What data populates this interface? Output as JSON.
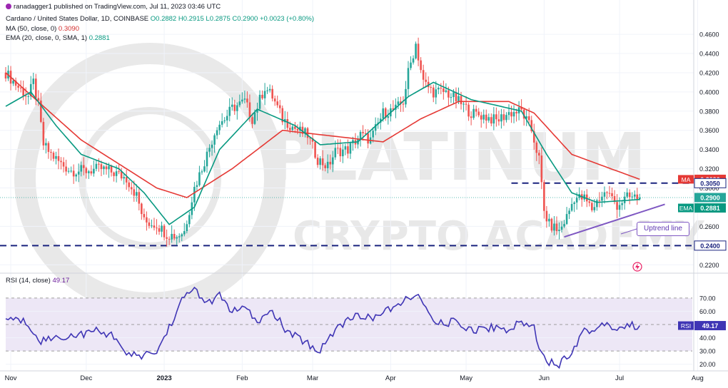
{
  "header": {
    "publisher": "ranadagger1 published on TradingView.com, Jul 11, 2023 03:46 UTC",
    "symbol": "Cardano / United States Dollar, 1D, COINBASE",
    "ohlc": "O0.2882 H0.2915 L0.2875 C0.2900 +0.0023 (+0.80%)",
    "ma_label": "MA (50, close, 0)",
    "ma_value": "0.3090",
    "ema_label": "EMA (20, close, 0, SMA, 1)",
    "ema_value": "0.2881",
    "rsi_label": "RSI (14, close)",
    "rsi_value": "49.17"
  },
  "watermark": {
    "line1": "PLATINUM",
    "line2": "CRYPTO ACADEMY"
  },
  "annotation": {
    "uptrend_label": "Uptrend line"
  },
  "colors": {
    "up": "#26a69a",
    "down": "#ef5350",
    "ma": "#e53935",
    "ema": "#089981",
    "rsi": "#3f35b5",
    "rsi_band": "#ede7f6",
    "level_line": "#1a237e",
    "trendline": "#7e57c2",
    "axis_text": "#131722"
  },
  "chart_data": [
    {
      "type": "candlestick",
      "title": "Cardano / United States Dollar, 1D, COINBASE",
      "x_ticks": [
        "Nov",
        "Dec",
        "2023",
        "Feb",
        "Mar",
        "Apr",
        "May",
        "Jun",
        "Jul",
        "Aug"
      ],
      "y_ticks": [
        "0.4600",
        "0.4400",
        "0.4200",
        "0.4000",
        "0.3800",
        "0.3600",
        "0.3400",
        "0.3200",
        "0.3000",
        "0.2600",
        "0.2400",
        "0.2200"
      ],
      "ylim": [
        0.215,
        0.466
      ],
      "last_price": "0.2900",
      "ma_tag": {
        "label": "MA",
        "value": "0.3090"
      },
      "ema_tag": {
        "label": "EMA",
        "value": "0.2881"
      },
      "levels": [
        {
          "value": 0.305,
          "label": "0.3050"
        },
        {
          "value": 0.24,
          "label": "0.2400"
        }
      ],
      "uptrend_line": {
        "from": {
          "date": "Jun 11",
          "price": 0.249
        },
        "to": {
          "date": "Jul 25",
          "price": 0.283
        }
      },
      "close_keypoints": [
        {
          "d": 0,
          "v": 0.42
        },
        {
          "d": 5,
          "v": 0.405
        },
        {
          "d": 9,
          "v": 0.395
        },
        {
          "d": 11,
          "v": 0.41
        },
        {
          "d": 13,
          "v": 0.385
        },
        {
          "d": 15,
          "v": 0.345
        },
        {
          "d": 18,
          "v": 0.335
        },
        {
          "d": 22,
          "v": 0.325
        },
        {
          "d": 26,
          "v": 0.318
        },
        {
          "d": 32,
          "v": 0.318
        },
        {
          "d": 38,
          "v": 0.32
        },
        {
          "d": 44,
          "v": 0.315
        },
        {
          "d": 48,
          "v": 0.31
        },
        {
          "d": 52,
          "v": 0.292
        },
        {
          "d": 55,
          "v": 0.265
        },
        {
          "d": 60,
          "v": 0.262
        },
        {
          "d": 64,
          "v": 0.252
        },
        {
          "d": 68,
          "v": 0.25
        },
        {
          "d": 71,
          "v": 0.255
        },
        {
          "d": 75,
          "v": 0.3
        },
        {
          "d": 80,
          "v": 0.335
        },
        {
          "d": 84,
          "v": 0.365
        },
        {
          "d": 87,
          "v": 0.372
        },
        {
          "d": 90,
          "v": 0.383
        },
        {
          "d": 95,
          "v": 0.39
        },
        {
          "d": 98,
          "v": 0.372
        },
        {
          "d": 103,
          "v": 0.405
        },
        {
          "d": 106,
          "v": 0.395
        },
        {
          "d": 110,
          "v": 0.372
        },
        {
          "d": 116,
          "v": 0.36
        },
        {
          "d": 120,
          "v": 0.355
        },
        {
          "d": 124,
          "v": 0.33
        },
        {
          "d": 128,
          "v": 0.322
        },
        {
          "d": 131,
          "v": 0.338
        },
        {
          "d": 136,
          "v": 0.34
        },
        {
          "d": 141,
          "v": 0.355
        },
        {
          "d": 145,
          "v": 0.35
        },
        {
          "d": 150,
          "v": 0.378
        },
        {
          "d": 155,
          "v": 0.382
        },
        {
          "d": 158,
          "v": 0.39
        },
        {
          "d": 160,
          "v": 0.42
        },
        {
          "d": 163,
          "v": 0.45
        },
        {
          "d": 166,
          "v": 0.41
        },
        {
          "d": 170,
          "v": 0.4
        },
        {
          "d": 175,
          "v": 0.4
        },
        {
          "d": 180,
          "v": 0.39
        },
        {
          "d": 185,
          "v": 0.378
        },
        {
          "d": 190,
          "v": 0.375
        },
        {
          "d": 195,
          "v": 0.37
        },
        {
          "d": 200,
          "v": 0.378
        },
        {
          "d": 205,
          "v": 0.38
        },
        {
          "d": 209,
          "v": 0.36
        },
        {
          "d": 212,
          "v": 0.33
        },
        {
          "d": 214,
          "v": 0.275
        },
        {
          "d": 216,
          "v": 0.262
        },
        {
          "d": 220,
          "v": 0.255
        },
        {
          "d": 223,
          "v": 0.27
        },
        {
          "d": 226,
          "v": 0.29
        },
        {
          "d": 230,
          "v": 0.289
        },
        {
          "d": 233,
          "v": 0.278
        },
        {
          "d": 236,
          "v": 0.29
        },
        {
          "d": 239,
          "v": 0.296
        },
        {
          "d": 243,
          "v": 0.282
        },
        {
          "d": 247,
          "v": 0.29
        },
        {
          "d": 252,
          "v": 0.29
        }
      ],
      "ma_keypoints": [
        {
          "d": 0,
          "v": 0.42
        },
        {
          "d": 30,
          "v": 0.35
        },
        {
          "d": 60,
          "v": 0.3
        },
        {
          "d": 72,
          "v": 0.29
        },
        {
          "d": 90,
          "v": 0.32
        },
        {
          "d": 110,
          "v": 0.36
        },
        {
          "d": 150,
          "v": 0.348
        },
        {
          "d": 165,
          "v": 0.372
        },
        {
          "d": 180,
          "v": 0.39
        },
        {
          "d": 200,
          "v": 0.39
        },
        {
          "d": 210,
          "v": 0.378
        },
        {
          "d": 225,
          "v": 0.335
        },
        {
          "d": 252,
          "v": 0.309
        }
      ],
      "ema_keypoints": [
        {
          "d": 0,
          "v": 0.385
        },
        {
          "d": 10,
          "v": 0.4
        },
        {
          "d": 20,
          "v": 0.365
        },
        {
          "d": 30,
          "v": 0.335
        },
        {
          "d": 45,
          "v": 0.32
        },
        {
          "d": 55,
          "v": 0.295
        },
        {
          "d": 65,
          "v": 0.262
        },
        {
          "d": 75,
          "v": 0.28
        },
        {
          "d": 85,
          "v": 0.34
        },
        {
          "d": 100,
          "v": 0.382
        },
        {
          "d": 115,
          "v": 0.365
        },
        {
          "d": 125,
          "v": 0.345
        },
        {
          "d": 140,
          "v": 0.348
        },
        {
          "d": 160,
          "v": 0.395
        },
        {
          "d": 170,
          "v": 0.41
        },
        {
          "d": 185,
          "v": 0.392
        },
        {
          "d": 205,
          "v": 0.38
        },
        {
          "d": 215,
          "v": 0.335
        },
        {
          "d": 225,
          "v": 0.295
        },
        {
          "d": 235,
          "v": 0.285
        },
        {
          "d": 252,
          "v": 0.288
        }
      ]
    },
    {
      "type": "line",
      "title": "RSI (14, close)",
      "y_ticks": [
        "70.00",
        "60.00",
        "50.00",
        "40.00",
        "30.00",
        "20.00"
      ],
      "ylim": [
        15,
        85
      ],
      "band": [
        30,
        70
      ],
      "midline": 50,
      "last_value": "49.17",
      "rsi_tag": {
        "label": "RSI",
        "value": "49.17"
      },
      "keypoints": [
        {
          "d": 0,
          "v": 55
        },
        {
          "d": 8,
          "v": 52
        },
        {
          "d": 14,
          "v": 38
        },
        {
          "d": 20,
          "v": 40
        },
        {
          "d": 28,
          "v": 42
        },
        {
          "d": 36,
          "v": 45
        },
        {
          "d": 44,
          "v": 41
        },
        {
          "d": 48,
          "v": 26
        },
        {
          "d": 55,
          "v": 27
        },
        {
          "d": 60,
          "v": 29
        },
        {
          "d": 65,
          "v": 48
        },
        {
          "d": 70,
          "v": 68
        },
        {
          "d": 75,
          "v": 78
        },
        {
          "d": 80,
          "v": 65
        },
        {
          "d": 85,
          "v": 72
        },
        {
          "d": 90,
          "v": 60
        },
        {
          "d": 95,
          "v": 62
        },
        {
          "d": 100,
          "v": 52
        },
        {
          "d": 106,
          "v": 60
        },
        {
          "d": 112,
          "v": 44
        },
        {
          "d": 120,
          "v": 36
        },
        {
          "d": 124,
          "v": 29
        },
        {
          "d": 130,
          "v": 44
        },
        {
          "d": 137,
          "v": 56
        },
        {
          "d": 145,
          "v": 55
        },
        {
          "d": 155,
          "v": 63
        },
        {
          "d": 162,
          "v": 73
        },
        {
          "d": 166,
          "v": 67
        },
        {
          "d": 170,
          "v": 50
        },
        {
          "d": 178,
          "v": 52
        },
        {
          "d": 186,
          "v": 46
        },
        {
          "d": 194,
          "v": 48
        },
        {
          "d": 200,
          "v": 46
        },
        {
          "d": 205,
          "v": 52
        },
        {
          "d": 210,
          "v": 48
        },
        {
          "d": 212,
          "v": 33
        },
        {
          "d": 216,
          "v": 22
        },
        {
          "d": 220,
          "v": 20
        },
        {
          "d": 225,
          "v": 30
        },
        {
          "d": 230,
          "v": 46
        },
        {
          "d": 234,
          "v": 45
        },
        {
          "d": 238,
          "v": 52
        },
        {
          "d": 242,
          "v": 47
        },
        {
          "d": 247,
          "v": 49
        },
        {
          "d": 252,
          "v": 49.17
        }
      ]
    }
  ]
}
